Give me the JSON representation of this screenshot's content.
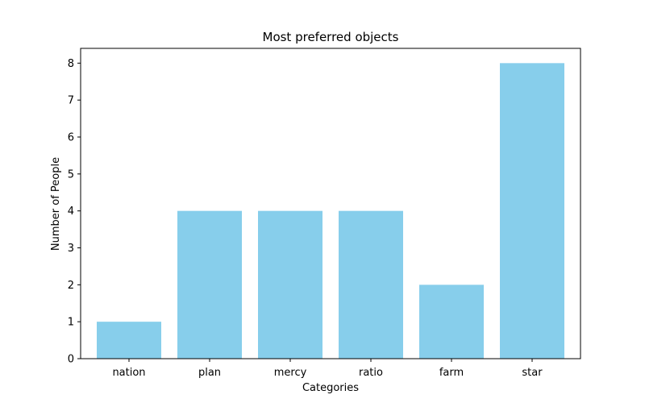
{
  "chart_data": {
    "type": "bar",
    "title": "Most preferred objects",
    "xlabel": "Categories",
    "ylabel": "Number of People",
    "categories": [
      "nation",
      "plan",
      "mercy",
      "ratio",
      "farm",
      "star"
    ],
    "values": [
      1,
      4,
      4,
      4,
      2,
      8
    ],
    "ylim": [
      0,
      8.4
    ],
    "yticks": [
      0,
      1,
      2,
      3,
      4,
      5,
      6,
      7,
      8
    ],
    "grid": false,
    "bar_color": "#87CEEB"
  }
}
